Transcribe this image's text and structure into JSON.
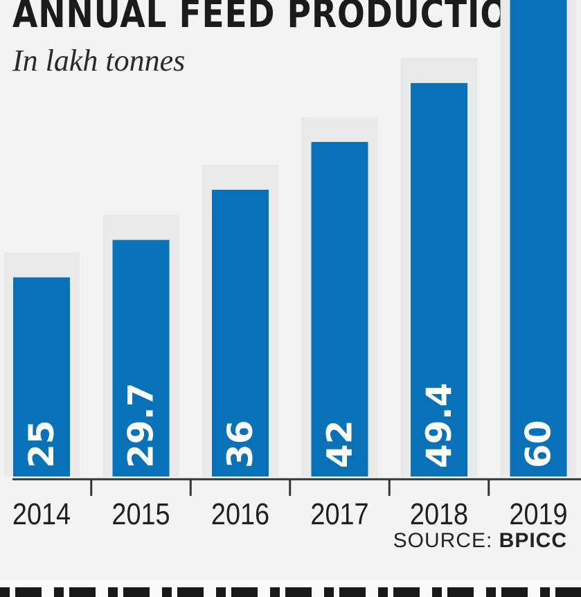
{
  "chart_data": {
    "type": "bar",
    "title": "ANNUAL FEED PRODUCTION",
    "subtitle": "In lakh tonnes",
    "categories": [
      "2014",
      "2015",
      "2016",
      "2017",
      "2018",
      "2019"
    ],
    "values": [
      25,
      29.7,
      36,
      42,
      49.4,
      60
    ],
    "value_labels": [
      "25",
      "29.7",
      "36",
      "42",
      "49.4",
      "60"
    ],
    "ylim": [
      0,
      60
    ],
    "grid": false,
    "legend": "none",
    "bar_color": "#0872b9"
  },
  "source": {
    "label": "SOURCE:",
    "name": "BPICC"
  }
}
